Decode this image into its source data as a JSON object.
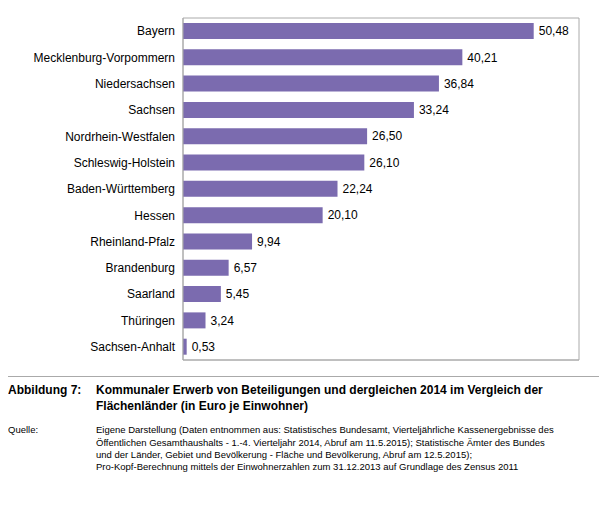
{
  "chart_data": {
    "type": "bar",
    "orientation": "horizontal",
    "categories": [
      "Bayern",
      "Mecklenburg-Vorpommern",
      "Niedersachsen",
      "Sachsen",
      "Nordrhein-Westfalen",
      "Schleswig-Holstein",
      "Baden-Württemberg",
      "Hessen",
      "Rheinland-Pfalz",
      "Brandenburg",
      "Saarland",
      "Thüringen",
      "Sachsen-Anhalt"
    ],
    "values": [
      50.48,
      40.21,
      36.84,
      33.24,
      26.5,
      26.1,
      22.24,
      20.1,
      9.94,
      6.57,
      5.45,
      3.24,
      0.53
    ],
    "value_labels": [
      "50,48",
      "40,21",
      "36,84",
      "33,24",
      "26,50",
      "26,10",
      "22,24",
      "20,10",
      "9,94",
      "6,57",
      "5,45",
      "3,24",
      "0,53"
    ],
    "data_labels": true,
    "color": "#7B6BAF",
    "xlim": [
      0,
      57
    ],
    "grid": false,
    "tick_labels": "y",
    "annotations": [
      "Abbildung 7:",
      "Kommunaler Erwerb von Beteiligungen und dergleichen 2014 im Vergleich der\nFlächenländer (in Euro je Einwohner)",
      "Quelle:",
      "Eigene Darstellung (Daten entnommen aus: Statistisches Bundesamt, Vierteljährliche Kassenergebnisse des\nÖffentlichen Gesamthaushalts - 1.-4. Vierteljahr 2014, Abruf am 11.5.2015);  Statistische Ämter des Bundes\nund der Länder, Gebiet und Bevölkerung - Fläche und Bevölkerung, Abruf am 12.5.2015);\nPro-Kopf-Berechnung mittels der Einwohnerzahlen zum 31.12.2013 auf Grundlage des Zensus 2011"
    ]
  }
}
